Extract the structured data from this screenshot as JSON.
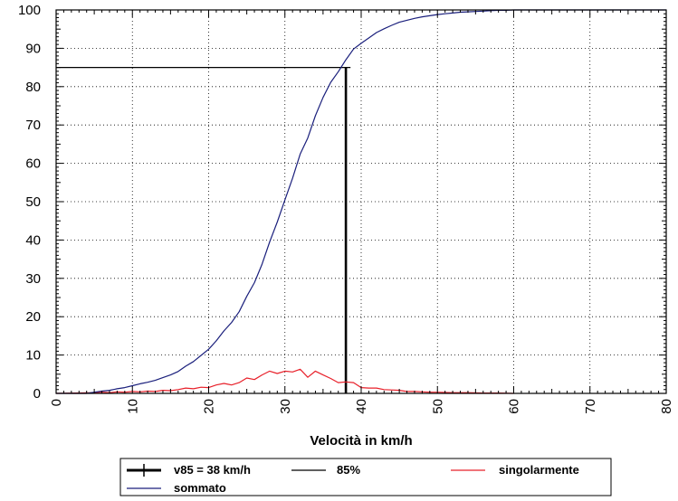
{
  "chart_data": {
    "type": "line",
    "xlabel": "Velocità in  km/h",
    "ylabel": "",
    "xlim": [
      0,
      80
    ],
    "ylim": [
      0,
      100
    ],
    "xticks": [
      "0",
      "10",
      "20",
      "30",
      "40",
      "50",
      "60",
      "70",
      "80"
    ],
    "yticks": [
      "0",
      "10",
      "20",
      "30",
      "40",
      "50",
      "60",
      "70",
      "80",
      "90",
      "100"
    ],
    "grid": true,
    "legend_position": "bottom",
    "series": [
      {
        "name": "v85 = 38  km/h",
        "color": "#000000",
        "x": [
          38,
          38
        ],
        "y": [
          0,
          85
        ]
      },
      {
        "name": "85%",
        "color": "#000000",
        "x": [
          0,
          38.6
        ],
        "y": [
          85,
          85
        ]
      },
      {
        "name": "singolarmente",
        "color": "#e8202a",
        "x": [
          0,
          5,
          6,
          7,
          8,
          9,
          10,
          11,
          12,
          13,
          14,
          15,
          16,
          17,
          18,
          19,
          20,
          21,
          22,
          23,
          24,
          25,
          26,
          27,
          28,
          29,
          30,
          31,
          32,
          33,
          34,
          35,
          36,
          37,
          38,
          39,
          40,
          41,
          42,
          43,
          44,
          45,
          46,
          47,
          48,
          49,
          50,
          52,
          54,
          56,
          58,
          60
        ],
        "y": [
          0,
          0.2,
          0.3,
          0.2,
          0.4,
          0.3,
          0.5,
          0.4,
          0.6,
          0.5,
          0.8,
          0.7,
          1.0,
          1.4,
          1.2,
          1.6,
          1.5,
          2.2,
          2.6,
          2.2,
          2.8,
          4.0,
          3.6,
          4.8,
          5.8,
          5.2,
          5.8,
          5.6,
          6.3,
          4.2,
          5.8,
          4.8,
          3.9,
          2.8,
          3.0,
          2.8,
          1.5,
          1.4,
          1.4,
          1.0,
          0.9,
          0.8,
          0.5,
          0.5,
          0.4,
          0.3,
          0.3,
          0.2,
          0.2,
          0.1,
          0.1,
          0
        ]
      },
      {
        "name": "sommato",
        "color": "#1a1f7c",
        "x": [
          0,
          4,
          5,
          6,
          7,
          8,
          9,
          10,
          11,
          12,
          13,
          14,
          15,
          16,
          17,
          18,
          19,
          20,
          21,
          22,
          23,
          24,
          25,
          26,
          27,
          28,
          29,
          30,
          31,
          32,
          33,
          34,
          35,
          36,
          37,
          38,
          39,
          40,
          41,
          42,
          43,
          44,
          45,
          46,
          47,
          48,
          49,
          50,
          51,
          52,
          53,
          54,
          55,
          56,
          57,
          58,
          59,
          60,
          62,
          65,
          70,
          75,
          80
        ],
        "y": [
          0,
          0,
          0.3,
          0.6,
          0.8,
          1.2,
          1.5,
          2.0,
          2.5,
          2.9,
          3.4,
          4.1,
          4.8,
          5.7,
          7.1,
          8.3,
          9.9,
          11.5,
          13.7,
          16.3,
          18.5,
          21.3,
          25.3,
          28.9,
          33.7,
          39.5,
          44.7,
          50.5,
          56.1,
          62.4,
          66.6,
          72.4,
          77.2,
          81.1,
          83.9,
          87.0,
          89.8,
          91.3,
          92.7,
          94.1,
          95.1,
          96.0,
          96.8,
          97.3,
          97.8,
          98.2,
          98.5,
          98.8,
          99.0,
          99.2,
          99.4,
          99.5,
          99.6,
          99.7,
          99.8,
          99.9,
          99.9,
          100,
          100,
          100,
          100,
          100,
          100
        ]
      }
    ]
  }
}
